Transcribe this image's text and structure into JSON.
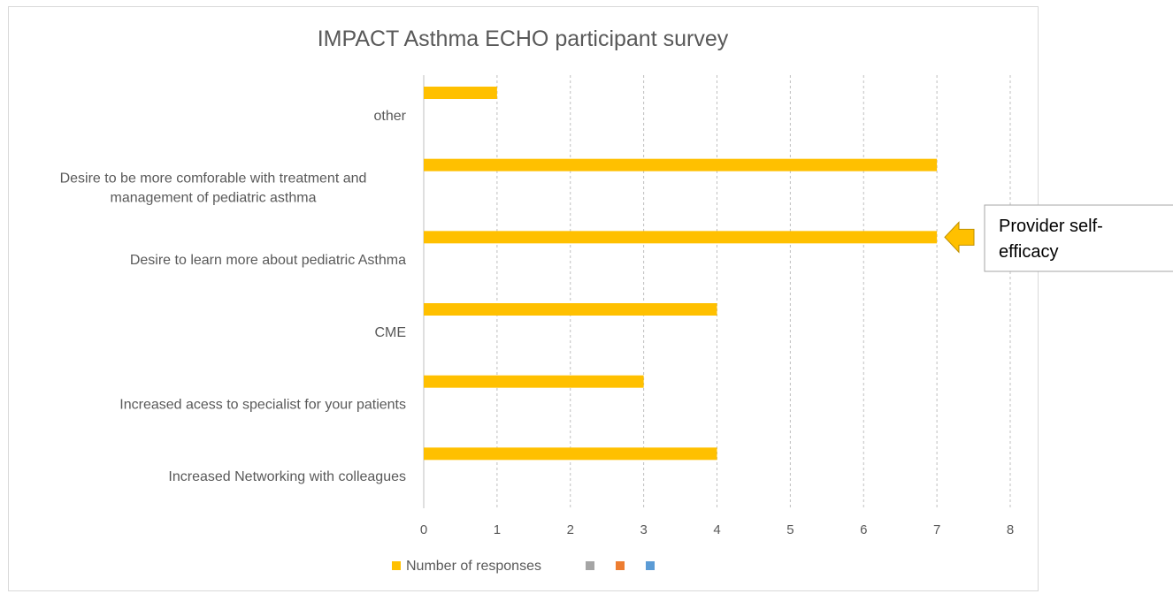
{
  "chart_data": {
    "type": "bar",
    "orientation": "horizontal",
    "title": "IMPACT Asthma ECHO participant survey",
    "categories": [
      "other",
      "Desire to be more comforable with treatment and management of pediatric asthma",
      "Desire to learn more about pediatric Asthma",
      "CME",
      "Increased acess to specialist for your patients",
      "Increased Networking with colleagues"
    ],
    "category_label_lines": [
      [
        "other"
      ],
      [
        "Desire to be more comforable with treatment and",
        "management of pediatric asthma"
      ],
      [
        "Desire to learn more about pediatric Asthma"
      ],
      [
        "CME"
      ],
      [
        "Increased acess to specialist for your patients"
      ],
      [
        "Increased Networking with colleagues"
      ]
    ],
    "series": [
      {
        "name": "Number of responses",
        "values": [
          1,
          7,
          7,
          4,
          3,
          4
        ],
        "color": "#FFC000"
      },
      {
        "name": "",
        "values": [
          null,
          null,
          null,
          null,
          null,
          null
        ],
        "color": "#A5A5A5"
      },
      {
        "name": "",
        "values": [
          null,
          null,
          null,
          null,
          null,
          null
        ],
        "color": "#ED7D31"
      },
      {
        "name": "",
        "values": [
          null,
          null,
          null,
          null,
          null,
          null
        ],
        "color": "#5B9BD5"
      }
    ],
    "xlim": [
      0,
      8
    ],
    "xticks": [
      0,
      1,
      2,
      3,
      4,
      5,
      6,
      7,
      8
    ],
    "xlabel": "",
    "ylabel": "",
    "grid": "vertical-dashed",
    "legend_position": "bottom"
  },
  "callout": {
    "lines": [
      "Provider self-",
      "efficacy"
    ],
    "arrow_color": "#FFC000",
    "points_to_category": 2
  }
}
